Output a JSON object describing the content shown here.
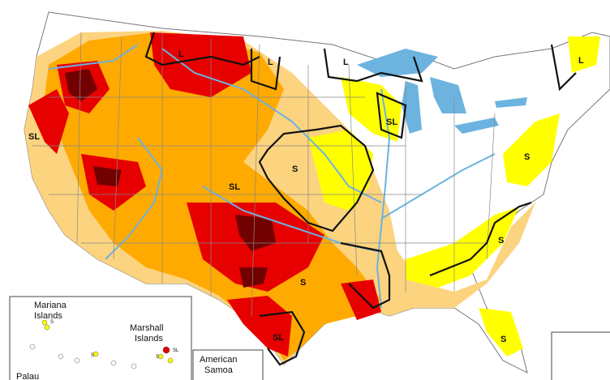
{
  "colors": {
    "background": "#ffffff",
    "D0_abnormally_dry": "#ffff00",
    "D1_moderate": "#fcd37f",
    "D2_severe": "#ffaa00",
    "D3_extreme": "#e60000",
    "D4_exceptional": "#730000",
    "water": "#6cb3e0",
    "state_borders": "#888888",
    "impact_lines": "#111111"
  },
  "impact_labels": {
    "california": "SL",
    "four_corners": "SL",
    "plains": "S",
    "south_central": "S",
    "south_texas": "SL",
    "southeast": "S",
    "florida": "S",
    "mid_atlantic": "S",
    "great_lakes": "SL",
    "montana": "L",
    "dakotas": "L",
    "upper_midwest": "L",
    "maine": "L"
  },
  "inset": {
    "mariana": "Mariana\nIslands",
    "marshall": "Marshall\nIslands",
    "palau": "Palau",
    "american_samoa": "American\nSamoa",
    "sl_tag": "SL",
    "s_tag": "S"
  }
}
